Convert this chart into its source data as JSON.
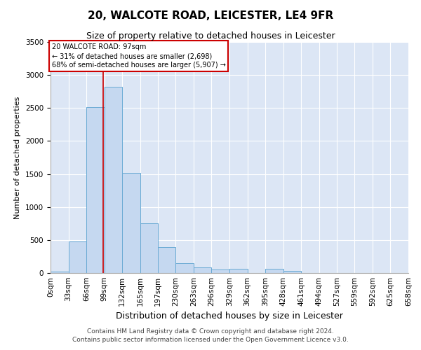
{
  "title": "20, WALCOTE ROAD, LEICESTER, LE4 9FR",
  "subtitle": "Size of property relative to detached houses in Leicester",
  "xlabel": "Distribution of detached houses by size in Leicester",
  "ylabel": "Number of detached properties",
  "footer_line1": "Contains HM Land Registry data © Crown copyright and database right 2024.",
  "footer_line2": "Contains public sector information licensed under the Open Government Licence v3.0.",
  "bar_color": "#c5d8f0",
  "bar_edge_color": "#6aaad4",
  "background_color": "#dce6f5",
  "grid_color": "#ffffff",
  "annotation_box_color": "#cc0000",
  "annotation_text_line1": "20 WALCOTE ROAD: 97sqm",
  "annotation_text_line2": "← 31% of detached houses are smaller (2,698)",
  "annotation_text_line3": "68% of semi-detached houses are larger (5,907) →",
  "property_line_x": 97,
  "bins": [
    0,
    33,
    66,
    99,
    132,
    165,
    197,
    230,
    263,
    296,
    329,
    362,
    395,
    428,
    461,
    494,
    527,
    559,
    592,
    625,
    658
  ],
  "bin_labels": [
    "0sqm",
    "33sqm",
    "66sqm",
    "99sqm",
    "132sqm",
    "165sqm",
    "197sqm",
    "230sqm",
    "263sqm",
    "296sqm",
    "329sqm",
    "362sqm",
    "395sqm",
    "428sqm",
    "461sqm",
    "494sqm",
    "527sqm",
    "559sqm",
    "592sqm",
    "625sqm",
    "658sqm"
  ],
  "counts": [
    25,
    480,
    2510,
    2820,
    1520,
    750,
    390,
    145,
    80,
    55,
    60,
    0,
    60,
    30,
    0,
    0,
    0,
    0,
    0,
    0
  ],
  "ylim": [
    0,
    3500
  ],
  "yticks": [
    0,
    500,
    1000,
    1500,
    2000,
    2500,
    3000,
    3500
  ],
  "title_fontsize": 11,
  "subtitle_fontsize": 9,
  "ylabel_fontsize": 8,
  "xlabel_fontsize": 9,
  "tick_fontsize": 7.5,
  "footer_fontsize": 6.5
}
